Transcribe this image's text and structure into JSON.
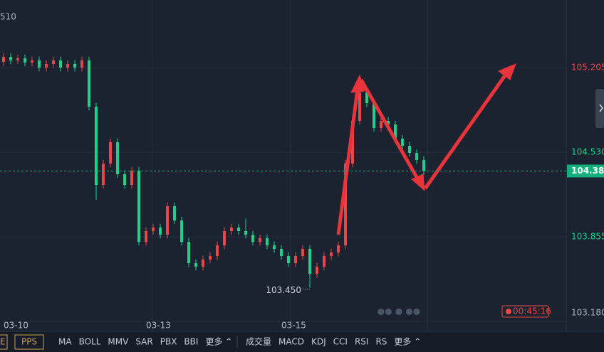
{
  "chart_data": {
    "type": "candlestick",
    "corner_label": "510",
    "categories": [
      null,
      "03-10",
      null,
      null,
      null,
      null,
      null,
      null,
      null,
      null,
      null,
      null,
      null,
      null,
      null,
      null,
      null,
      null,
      null,
      null,
      null,
      "03-13",
      null,
      null,
      null,
      null,
      null,
      null,
      null,
      null,
      null,
      null,
      null,
      null,
      null,
      null,
      null,
      null,
      null,
      null,
      "03-15",
      null,
      null,
      null,
      null,
      null,
      null,
      null,
      null,
      null,
      null,
      null,
      null,
      null,
      null,
      null,
      null,
      null,
      null,
      null
    ],
    "open": [
      105.25,
      105.29,
      105.262,
      105.279,
      105.245,
      105.262,
      105.205,
      105.234,
      105.262,
      105.205,
      105.234,
      105.205,
      105.262,
      104.893,
      104.269,
      104.439,
      104.61,
      104.354,
      104.269,
      104.383,
      103.815,
      103.901,
      103.929,
      103.872,
      104.099,
      103.986,
      103.815,
      103.645,
      103.617,
      103.674,
      103.702,
      103.787,
      103.901,
      103.929,
      103.901,
      103.872,
      103.815,
      103.844,
      103.787,
      103.759,
      103.702,
      103.645,
      103.702,
      103.759,
      103.56,
      103.617,
      103.702,
      103.73,
      103.787,
      104.439,
      104.78,
      105.007,
      104.922,
      104.723,
      104.78,
      104.751,
      104.638,
      104.581,
      104.524,
      104.468
    ],
    "close": [
      105.29,
      105.262,
      105.279,
      105.245,
      105.262,
      105.205,
      105.234,
      105.262,
      105.205,
      105.234,
      105.205,
      105.262,
      104.893,
      104.269,
      104.439,
      104.61,
      104.354,
      104.269,
      104.383,
      103.815,
      103.901,
      103.929,
      103.872,
      104.099,
      103.986,
      103.815,
      103.645,
      103.617,
      103.674,
      103.702,
      103.787,
      103.901,
      103.929,
      103.901,
      103.872,
      103.815,
      103.844,
      103.787,
      103.759,
      103.702,
      103.645,
      103.702,
      103.759,
      103.56,
      103.617,
      103.702,
      103.73,
      103.787,
      104.439,
      104.78,
      105.007,
      104.922,
      104.723,
      104.78,
      104.751,
      104.638,
      104.581,
      104.524,
      104.468,
      104.38
    ],
    "high": [
      105.32,
      105.32,
      105.309,
      105.309,
      105.292,
      105.292,
      105.264,
      105.292,
      105.292,
      105.264,
      105.264,
      105.292,
      105.292,
      104.923,
      104.469,
      104.64,
      104.64,
      104.384,
      104.413,
      104.413,
      103.931,
      103.959,
      103.959,
      104.129,
      104.129,
      104.016,
      103.845,
      103.675,
      103.704,
      103.732,
      103.817,
      103.931,
      103.959,
      103.959,
      104.0,
      103.902,
      103.874,
      103.874,
      103.817,
      103.789,
      103.732,
      103.732,
      103.789,
      103.789,
      103.647,
      103.732,
      103.76,
      103.817,
      104.469,
      104.81,
      105.08,
      105.037,
      104.952,
      104.81,
      104.81,
      104.781,
      104.668,
      104.611,
      104.554,
      104.498
    ],
    "low": [
      105.22,
      105.232,
      105.232,
      105.215,
      105.215,
      105.175,
      105.175,
      105.204,
      105.175,
      105.175,
      105.175,
      105.175,
      104.863,
      104.15,
      104.239,
      104.409,
      104.324,
      104.239,
      104.239,
      103.785,
      103.785,
      103.871,
      103.842,
      103.842,
      103.956,
      103.785,
      103.615,
      103.587,
      103.587,
      103.644,
      103.672,
      103.757,
      103.871,
      103.871,
      103.842,
      103.785,
      103.785,
      103.757,
      103.729,
      103.672,
      103.615,
      103.615,
      103.672,
      103.45,
      103.53,
      103.587,
      103.672,
      103.7,
      103.757,
      104.409,
      104.75,
      104.892,
      104.693,
      104.693,
      104.721,
      104.608,
      104.551,
      104.494,
      104.438,
      104.35
    ],
    "up_color": "#e8464a",
    "down_color": "#1fcf8a",
    "ylim": [
      103.08,
      105.744
    ],
    "yticks": [
      {
        "value": 103.18,
        "label": "103.180"
      },
      103.855,
      {
        "value": 104.53,
        "label": "104.530"
      },
      105.205
    ],
    "grid": true,
    "current_price": {
      "value": 104.38,
      "label": "104.380"
    },
    "low_label": {
      "value": 103.45,
      "label": "103.450"
    },
    "timer": "00:45:16"
  },
  "toolbar": {
    "left": [
      "E",
      "PPS",
      "MA",
      "BOLL",
      "MMV",
      "SAR",
      "PBX",
      "BBI",
      "更多 ⌃"
    ],
    "right": [
      "成交量",
      "MACD",
      "KDJ",
      "CCI",
      "RSI",
      "RS",
      "更多 ⌃"
    ]
  }
}
